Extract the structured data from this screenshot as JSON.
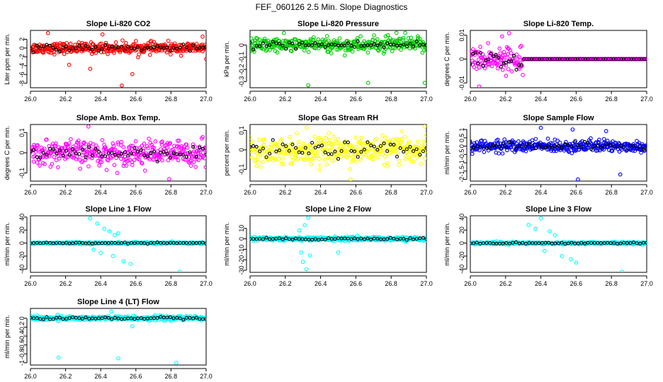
{
  "main_title": "FEF_060126  2.5 Min. Slope Diagnostics",
  "chart_data": [
    {
      "type": "scatter",
      "title": "Slope Li-820 CO2",
      "ylabel": "Liter ppm per min.",
      "xlim": [
        26.0,
        27.0
      ],
      "ylim": [
        -9,
        4
      ],
      "yticks": [
        -8,
        -6,
        -4,
        -2,
        0,
        2
      ],
      "xticks": [
        26.0,
        26.2,
        26.4,
        26.6,
        26.8,
        27.0
      ],
      "series_color": "#ff0000",
      "spread": 1.0,
      "outliers": [
        [
          26.52,
          -8.5
        ],
        [
          26.58,
          -5.9
        ],
        [
          26.34,
          -4.7
        ],
        [
          26.22,
          -3.8
        ],
        [
          27.0,
          -2.5
        ],
        [
          26.41,
          3.1
        ],
        [
          26.1,
          3.4
        ],
        [
          26.98,
          2.6
        ]
      ]
    },
    {
      "type": "scatter",
      "title": "Slope Li-820 Pressure",
      "ylabel": "kPa per min.",
      "xlim": [
        26.0,
        27.0
      ],
      "ylim": [
        -0.35,
        0.12
      ],
      "yticks": [
        -0.3,
        -0.2,
        -0.1,
        0.0
      ],
      "xticks": [
        26.0,
        26.2,
        26.4,
        26.6,
        26.8,
        27.0
      ],
      "series_color": "#00cc00",
      "spread": 0.05,
      "outliers": [
        [
          26.33,
          -0.33
        ],
        [
          26.67,
          -0.31
        ],
        [
          26.99,
          -0.31
        ],
        [
          26.83,
          0.1
        ],
        [
          26.88,
          0.1
        ]
      ]
    },
    {
      "type": "scatter",
      "title": "Slope Li-820 Temp.",
      "ylabel": "degrees C per min.",
      "xlim": [
        26.0,
        27.0
      ],
      "ylim": [
        -0.012,
        0.012
      ],
      "yticks": [
        -0.01,
        0.0,
        0.01
      ],
      "xticks": [
        26.0,
        26.2,
        26.4,
        26.6,
        26.8,
        27.0
      ],
      "series_color": "#ff00ff",
      "spread": 0.004,
      "outliers": [
        [
          26.05,
          -0.0115
        ],
        [
          26.22,
          0.0108
        ],
        [
          26.18,
          0.0095
        ]
      ]
    },
    {
      "type": "scatter",
      "title": "Slope Amb. Box Temp.",
      "ylabel": "degrees C per min.",
      "xlim": [
        26.0,
        27.0
      ],
      "ylim": [
        -0.14,
        0.14
      ],
      "yticks": [
        -0.1,
        0.0,
        0.1
      ],
      "xticks": [
        26.0,
        26.2,
        26.4,
        26.6,
        26.8,
        27.0
      ],
      "series_color": "#ff00ff",
      "spread": 0.05,
      "outliers": [
        [
          26.33,
          0.13
        ],
        [
          26.79,
          -0.13
        ]
      ]
    },
    {
      "type": "scatter",
      "title": "Slope Gas Stream RH",
      "ylabel": "percent per min.",
      "xlim": [
        26.0,
        27.0
      ],
      "ylim": [
        -0.16,
        0.13
      ],
      "yticks": [
        -0.1,
        0.0,
        0.1
      ],
      "xticks": [
        26.0,
        26.2,
        26.4,
        26.6,
        26.8,
        27.0
      ],
      "series_color": "#ffff00",
      "spread": 0.055,
      "outliers": [
        [
          26.57,
          -0.15
        ],
        [
          26.99,
          0.12
        ]
      ]
    },
    {
      "type": "scatter",
      "title": "Slope Sample Flow",
      "ylabel": "ml/min per min.",
      "xlim": [
        26.0,
        27.0
      ],
      "ylim": [
        -2.1,
        1.3
      ],
      "yticks": [
        -2.0,
        -1.5,
        -1.0,
        -0.5,
        0.0,
        0.5,
        1.0
      ],
      "xticks": [
        26.0,
        26.2,
        26.4,
        26.6,
        26.8,
        27.0
      ],
      "series_color": "#0000ff",
      "spread": 0.3,
      "outliers": [
        [
          26.61,
          -2.0
        ],
        [
          26.85,
          -1.7
        ],
        [
          26.4,
          1.1
        ],
        [
          26.58,
          1.0
        ],
        [
          26.77,
          0.9
        ]
      ]
    },
    {
      "type": "scatter",
      "title": "Slope Line 1 Flow",
      "ylabel": "ml/min per min.",
      "xlim": [
        26.0,
        27.0
      ],
      "ylim": [
        -45,
        42
      ],
      "yticks": [
        -40,
        -20,
        0,
        20,
        40
      ],
      "xticks": [
        26.0,
        26.2,
        26.4,
        26.6,
        26.8,
        27.0
      ],
      "series_color": "#00ffff",
      "spread": 1.2,
      "outliers": [
        [
          26.34,
          38
        ],
        [
          26.38,
          30
        ],
        [
          26.42,
          22
        ],
        [
          26.45,
          18
        ],
        [
          26.48,
          12
        ],
        [
          26.4,
          -15
        ],
        [
          26.47,
          -20
        ],
        [
          26.53,
          -28
        ],
        [
          26.57,
          -32
        ],
        [
          26.85,
          -44
        ],
        [
          26.36,
          -10
        ],
        [
          26.5,
          15
        ]
      ]
    },
    {
      "type": "scatter",
      "title": "Slope Line 2 Flow",
      "ylabel": "ml/min per min.",
      "xlim": [
        26.0,
        27.0
      ],
      "ylim": [
        -32,
        22
      ],
      "yticks": [
        -30,
        -20,
        -10,
        0,
        10
      ],
      "xticks": [
        26.0,
        26.2,
        26.4,
        26.6,
        26.8,
        27.0
      ],
      "series_color": "#00ffff",
      "spread": 1.5,
      "outliers": [
        [
          26.32,
          -29
        ],
        [
          26.3,
          -22
        ],
        [
          26.33,
          20
        ],
        [
          26.31,
          13
        ],
        [
          26.29,
          -13
        ],
        [
          26.5,
          -13
        ],
        [
          26.34,
          -16
        ],
        [
          26.28,
          8
        ]
      ]
    },
    {
      "type": "scatter",
      "title": "Slope Line 3 Flow",
      "ylabel": "ml/min per min.",
      "xlim": [
        26.0,
        27.0
      ],
      "ylim": [
        -45,
        42
      ],
      "yticks": [
        -40,
        -20,
        0,
        20,
        40
      ],
      "xticks": [
        26.0,
        26.2,
        26.4,
        26.6,
        26.8,
        27.0
      ],
      "series_color": "#00ffff",
      "spread": 1.5,
      "outliers": [
        [
          26.4,
          38
        ],
        [
          26.33,
          28
        ],
        [
          26.37,
          22
        ],
        [
          26.45,
          18
        ],
        [
          26.52,
          -20
        ],
        [
          26.57,
          -25
        ],
        [
          26.6,
          -30
        ],
        [
          26.86,
          -44
        ],
        [
          26.48,
          12
        ],
        [
          26.42,
          -12
        ]
      ]
    },
    {
      "type": "scatter",
      "title": "Slope Line 4 (LT) Flow",
      "ylabel": "ml/min per min.",
      "xlim": [
        26.0,
        27.0
      ],
      "ylim": [
        -1.05,
        0.22
      ],
      "yticks": [
        -1.0,
        -0.8,
        -0.6,
        -0.4,
        -0.2,
        0.0
      ],
      "xticks": [
        26.0,
        26.2,
        26.4,
        26.6,
        26.8,
        27.0
      ],
      "series_color": "#00ffff",
      "spread": 0.04,
      "outliers": [
        [
          26.16,
          -0.88
        ],
        [
          26.5,
          -0.9
        ],
        [
          26.83,
          -1.0
        ],
        [
          26.58,
          -0.18
        ],
        [
          26.46,
          0.15
        ]
      ]
    }
  ]
}
